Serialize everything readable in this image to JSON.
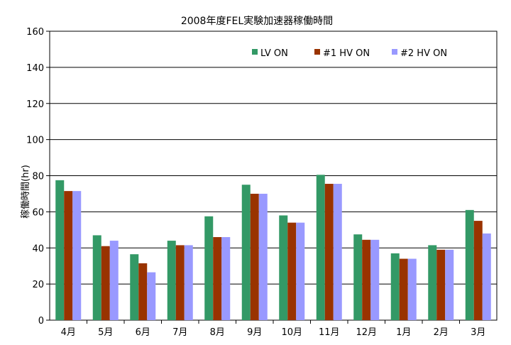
{
  "chart_data": {
    "type": "bar",
    "title": "2008年度FEL実験加速器稼働時間",
    "xlabel": "",
    "ylabel": "稼働時間(hr)",
    "ylim": [
      0,
      160
    ],
    "yticks": [
      0,
      20,
      40,
      60,
      80,
      100,
      120,
      140,
      160
    ],
    "grid": true,
    "legend_position": "top-right",
    "categories": [
      "4月",
      "5月",
      "6月",
      "7月",
      "8月",
      "9月",
      "10月",
      "11月",
      "12月",
      "1月",
      "2月",
      "3月"
    ],
    "series": [
      {
        "name": "LV ON",
        "color": "#339966",
        "values": [
          77.5,
          47,
          36.5,
          44,
          57.5,
          75,
          58,
          80.5,
          47.5,
          37,
          41.5,
          61
        ]
      },
      {
        "name": "#1  HV ON",
        "color": "#993300",
        "values": [
          71.5,
          41,
          31.5,
          41.5,
          46,
          70,
          54,
          75.5,
          44.5,
          34,
          39,
          55
        ]
      },
      {
        "name": "#2  HV ON",
        "color": "#9999FF",
        "values": [
          71.5,
          44,
          26.5,
          41.5,
          46,
          70,
          54,
          75.5,
          44.5,
          34,
          39,
          48
        ]
      }
    ]
  }
}
